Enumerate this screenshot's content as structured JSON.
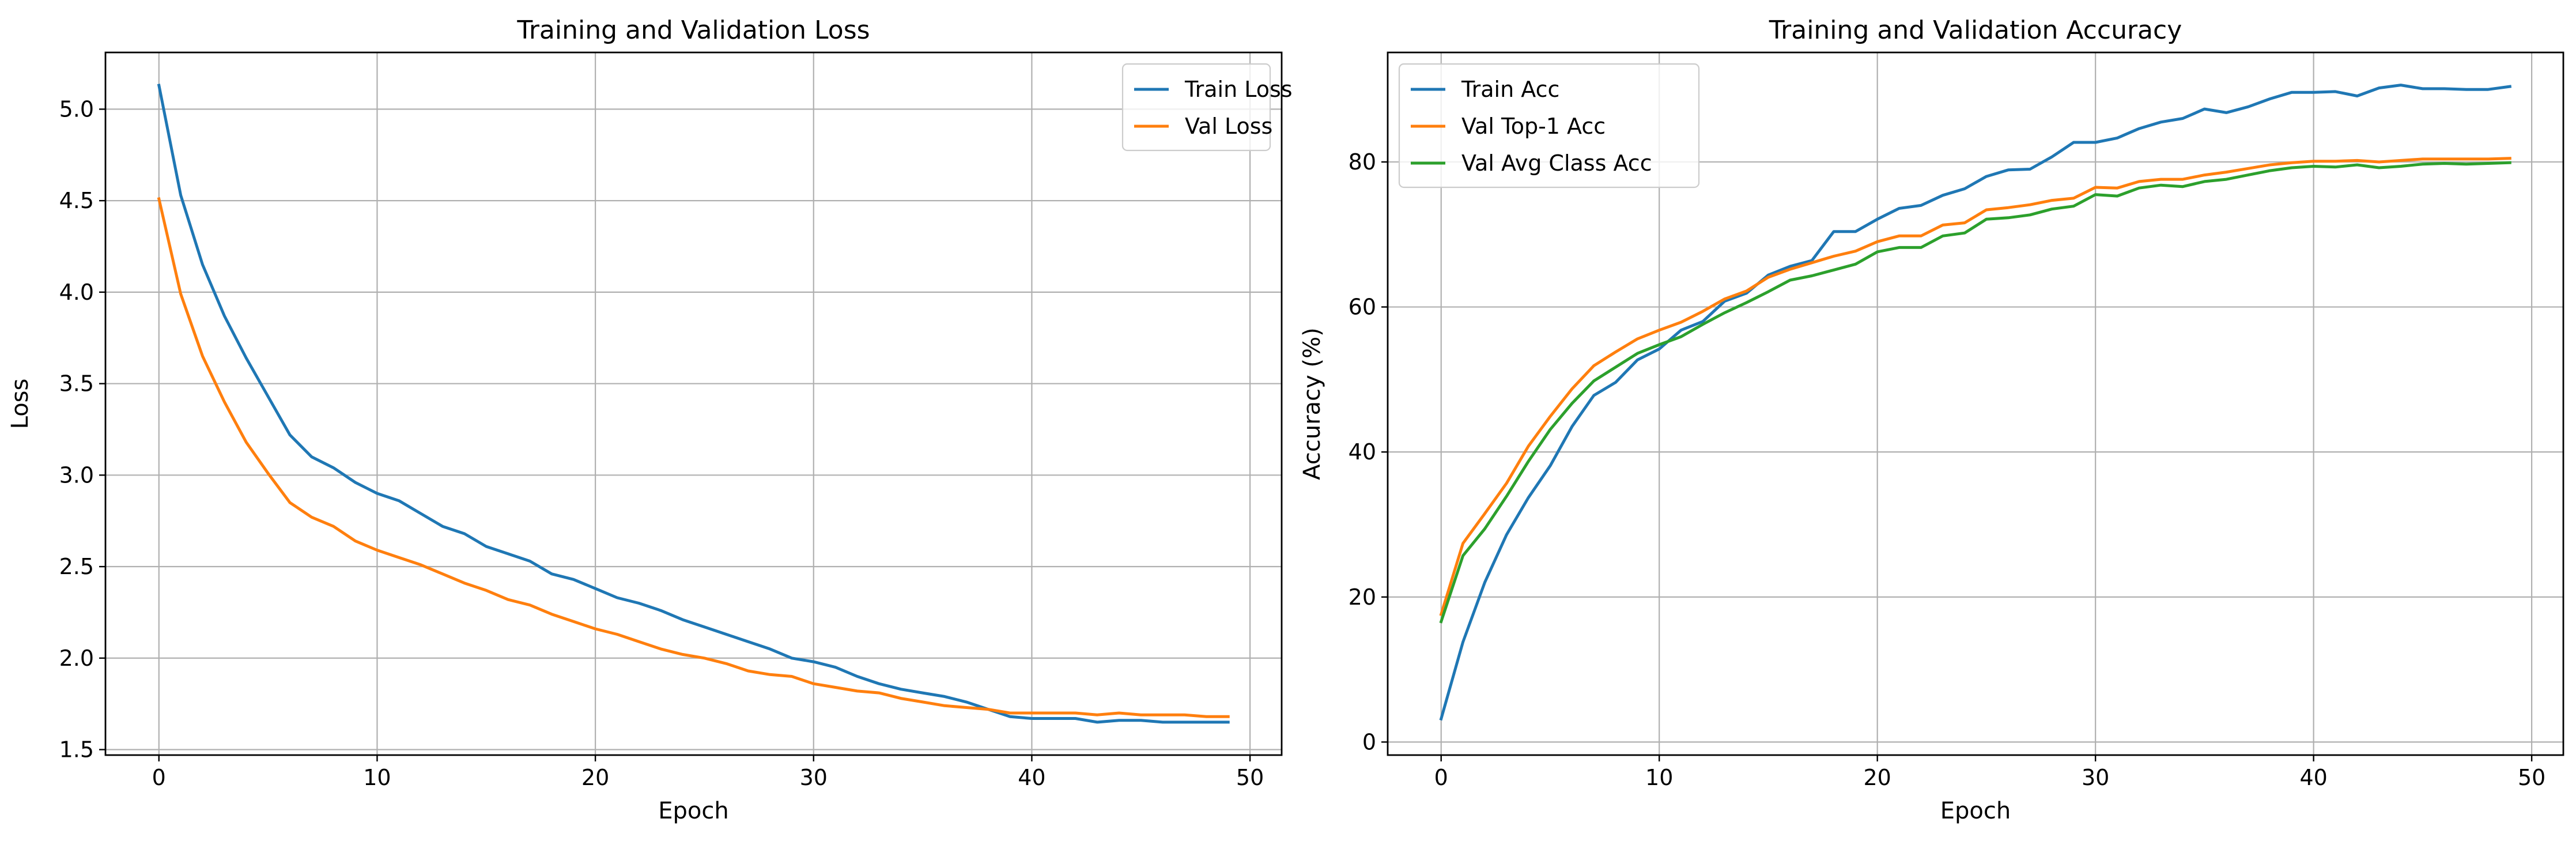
{
  "chart_data": [
    {
      "type": "line",
      "title": "Training and Validation Loss",
      "xlabel": "Epoch",
      "ylabel": "Loss",
      "xlim": [
        -2.45,
        51.45
      ],
      "ylim": [
        1.47,
        5.31
      ],
      "xticks": [
        0,
        10,
        20,
        30,
        40,
        50
      ],
      "yticks": [
        1.5,
        2.0,
        2.5,
        3.0,
        3.5,
        4.0,
        4.5,
        5.0
      ],
      "ytick_labels": [
        "1.5",
        "2.0",
        "2.5",
        "3.0",
        "3.5",
        "4.0",
        "4.5",
        "5.0"
      ],
      "grid": true,
      "legend_position": "upper right",
      "series": [
        {
          "name": "Train Loss",
          "color": "#1f77b4",
          "x": [
            0,
            1,
            2,
            3,
            4,
            5,
            6,
            7,
            8,
            9,
            10,
            11,
            12,
            13,
            14,
            15,
            16,
            17,
            18,
            19,
            20,
            21,
            22,
            23,
            24,
            25,
            26,
            27,
            28,
            29,
            30,
            31,
            32,
            33,
            34,
            35,
            36,
            37,
            38,
            39,
            40,
            41,
            42,
            43,
            44,
            45,
            46,
            47,
            48,
            49
          ],
          "values": [
            5.13,
            4.53,
            4.15,
            3.87,
            3.64,
            3.43,
            3.22,
            3.1,
            3.04,
            2.96,
            2.9,
            2.86,
            2.79,
            2.72,
            2.68,
            2.61,
            2.57,
            2.53,
            2.46,
            2.43,
            2.38,
            2.33,
            2.3,
            2.26,
            2.21,
            2.17,
            2.13,
            2.09,
            2.05,
            2.0,
            1.98,
            1.95,
            1.9,
            1.86,
            1.83,
            1.81,
            1.79,
            1.76,
            1.72,
            1.68,
            1.67,
            1.67,
            1.67,
            1.65,
            1.66,
            1.66,
            1.65,
            1.65,
            1.65,
            1.65
          ]
        },
        {
          "name": "Val Loss",
          "color": "#ff7f0e",
          "x": [
            0,
            1,
            2,
            3,
            4,
            5,
            6,
            7,
            8,
            9,
            10,
            11,
            12,
            13,
            14,
            15,
            16,
            17,
            18,
            19,
            20,
            21,
            22,
            23,
            24,
            25,
            26,
            27,
            28,
            29,
            30,
            31,
            32,
            33,
            34,
            35,
            36,
            37,
            38,
            39,
            40,
            41,
            42,
            43,
            44,
            45,
            46,
            47,
            48,
            49
          ],
          "values": [
            4.51,
            3.99,
            3.65,
            3.4,
            3.18,
            3.01,
            2.85,
            2.77,
            2.72,
            2.64,
            2.59,
            2.55,
            2.51,
            2.46,
            2.41,
            2.37,
            2.32,
            2.29,
            2.24,
            2.2,
            2.16,
            2.13,
            2.09,
            2.05,
            2.02,
            2.0,
            1.97,
            1.93,
            1.91,
            1.9,
            1.86,
            1.84,
            1.82,
            1.81,
            1.78,
            1.76,
            1.74,
            1.73,
            1.72,
            1.7,
            1.7,
            1.7,
            1.7,
            1.69,
            1.7,
            1.69,
            1.69,
            1.69,
            1.68,
            1.68
          ]
        }
      ]
    },
    {
      "type": "line",
      "title": "Training and Validation Accuracy",
      "xlabel": "Epoch",
      "ylabel": "Accuracy (%)",
      "xlim": [
        -2.45,
        51.45
      ],
      "ylim": [
        -1.8,
        95.1
      ],
      "xticks": [
        0,
        10,
        20,
        30,
        40,
        50
      ],
      "yticks": [
        0,
        20,
        40,
        60,
        80
      ],
      "ytick_labels": [
        "0",
        "20",
        "40",
        "60",
        "80"
      ],
      "grid": true,
      "legend_position": "upper left",
      "series": [
        {
          "name": "Train Acc",
          "color": "#1f77b4",
          "x": [
            0,
            1,
            2,
            3,
            4,
            5,
            6,
            7,
            8,
            9,
            10,
            11,
            12,
            13,
            14,
            15,
            16,
            17,
            18,
            19,
            20,
            21,
            22,
            23,
            24,
            25,
            26,
            27,
            28,
            29,
            30,
            31,
            32,
            33,
            34,
            35,
            36,
            37,
            38,
            39,
            40,
            41,
            42,
            43,
            44,
            45,
            46,
            47,
            48,
            49
          ],
          "values": [
            3.2,
            13.8,
            22.0,
            28.6,
            33.7,
            38.1,
            43.5,
            47.8,
            49.6,
            52.7,
            54.2,
            56.8,
            58.0,
            60.8,
            61.9,
            64.4,
            65.6,
            66.4,
            70.4,
            70.4,
            72.1,
            73.6,
            74.0,
            75.4,
            76.3,
            78.0,
            78.9,
            79.0,
            80.7,
            82.7,
            82.7,
            83.3,
            84.6,
            85.5,
            86.0,
            87.3,
            86.8,
            87.6,
            88.7,
            89.6,
            89.6,
            89.7,
            89.1,
            90.2,
            90.6,
            90.1,
            90.1,
            90.0,
            90.0,
            90.4
          ]
        },
        {
          "name": "Val Top-1 Acc",
          "color": "#ff7f0e",
          "x": [
            0,
            1,
            2,
            3,
            4,
            5,
            6,
            7,
            8,
            9,
            10,
            11,
            12,
            13,
            14,
            15,
            16,
            17,
            18,
            19,
            20,
            21,
            22,
            23,
            24,
            25,
            26,
            27,
            28,
            29,
            30,
            31,
            32,
            33,
            34,
            35,
            36,
            37,
            38,
            39,
            40,
            41,
            42,
            43,
            44,
            45,
            46,
            47,
            48,
            49
          ],
          "values": [
            17.6,
            27.4,
            31.5,
            35.7,
            40.8,
            44.9,
            48.7,
            51.9,
            53.8,
            55.6,
            56.8,
            57.9,
            59.4,
            61.1,
            62.2,
            64.1,
            65.2,
            66.1,
            67.0,
            67.7,
            69.0,
            69.8,
            69.8,
            71.3,
            71.6,
            73.4,
            73.7,
            74.1,
            74.7,
            75.0,
            76.5,
            76.4,
            77.3,
            77.6,
            77.6,
            78.2,
            78.6,
            79.1,
            79.6,
            79.9,
            80.1,
            80.1,
            80.2,
            80.0,
            80.2,
            80.4,
            80.4,
            80.4,
            80.4,
            80.5
          ]
        },
        {
          "name": "Val Avg Class Acc",
          "color": "#2ca02c",
          "x": [
            0,
            1,
            2,
            3,
            4,
            5,
            6,
            7,
            8,
            9,
            10,
            11,
            12,
            13,
            14,
            15,
            16,
            17,
            18,
            19,
            20,
            21,
            22,
            23,
            24,
            25,
            26,
            27,
            28,
            29,
            30,
            31,
            32,
            33,
            34,
            35,
            36,
            37,
            38,
            39,
            40,
            41,
            42,
            43,
            44,
            45,
            46,
            47,
            48,
            49
          ],
          "values": [
            16.6,
            25.7,
            29.4,
            33.9,
            38.7,
            43.1,
            46.7,
            49.8,
            51.7,
            53.6,
            54.8,
            55.9,
            57.6,
            59.2,
            60.6,
            62.1,
            63.7,
            64.3,
            65.1,
            65.9,
            67.6,
            68.2,
            68.2,
            69.8,
            70.2,
            72.1,
            72.3,
            72.7,
            73.5,
            73.9,
            75.5,
            75.3,
            76.4,
            76.8,
            76.6,
            77.3,
            77.6,
            78.2,
            78.8,
            79.2,
            79.4,
            79.3,
            79.6,
            79.2,
            79.4,
            79.7,
            79.8,
            79.7,
            79.8,
            79.9
          ]
        }
      ]
    }
  ]
}
